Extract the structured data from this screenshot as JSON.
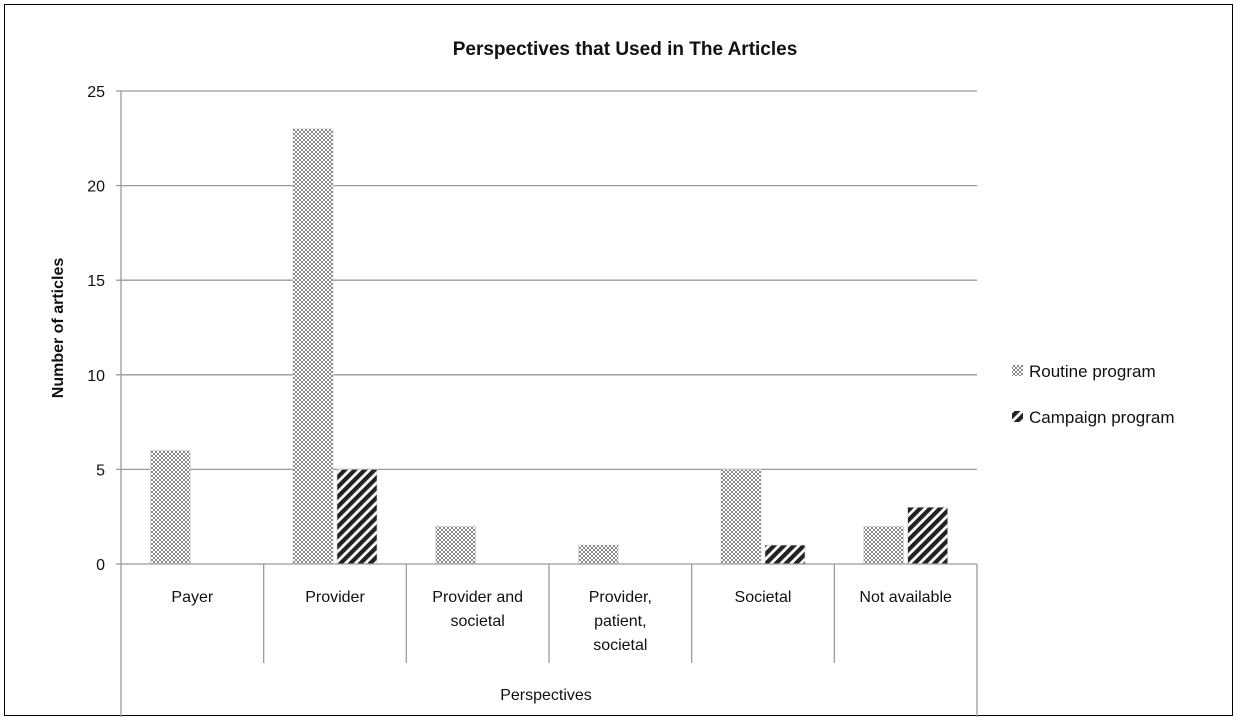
{
  "chart_data": {
    "type": "bar",
    "title": "Perspectives that Used in The Articles",
    "xlabel": "Perspectives",
    "ylabel": "Number of articles",
    "ylim": [
      0,
      25
    ],
    "yticks": [
      0,
      5,
      10,
      15,
      20,
      25
    ],
    "grid": true,
    "legend_position": "right",
    "categories": [
      [
        "Payer"
      ],
      [
        "Provider"
      ],
      [
        "Provider and",
        "societal"
      ],
      [
        "Provider,",
        "patient,",
        "societal"
      ],
      [
        "Societal"
      ],
      [
        "Not available"
      ]
    ],
    "series": [
      {
        "name": "Routine program",
        "pattern": "dots",
        "values": [
          6,
          23,
          2,
          1,
          5,
          2
        ]
      },
      {
        "name": "Campaign program",
        "pattern": "diagonal-stripes",
        "values": [
          0,
          5,
          0,
          0,
          1,
          3
        ]
      }
    ]
  }
}
